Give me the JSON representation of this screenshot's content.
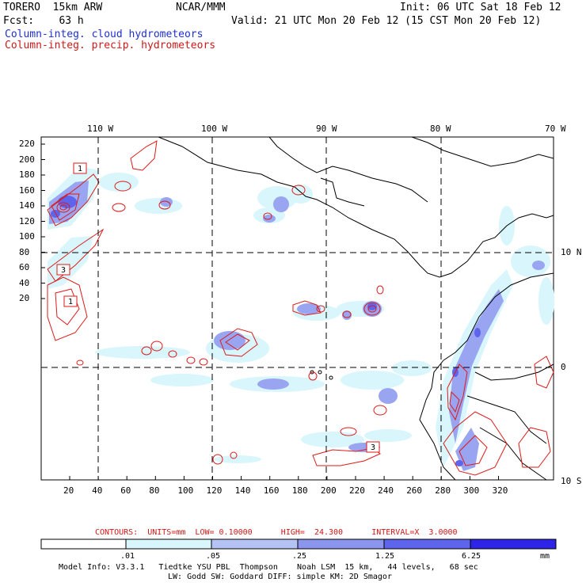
{
  "header": {
    "model": "TORERO  15km ARW",
    "org": "NCAR/MMM",
    "init": "Init: 06 UTC Sat 18 Feb 12",
    "fcst": "Fcst:    63 h",
    "valid": "Valid: 21 UTC Mon 20 Feb 12 (15 CST Mon 20 Feb 12)",
    "field_blue": "Column-integ. cloud hydrometeors",
    "field_red": "Column-integ. precip. hydrometeors"
  },
  "axes": {
    "lon_labels": [
      "110 W",
      "100 W",
      "90 W",
      "80 W",
      "70 W"
    ],
    "lat_labels": [
      "10 N",
      "0",
      "10 S"
    ],
    "y_ticks": [
      "220",
      "200",
      "180",
      "160",
      "140",
      "120",
      "100",
      "80",
      "60",
      "40",
      "20"
    ],
    "x_ticks": [
      "20",
      "40",
      "60",
      "80",
      "100",
      "120",
      "140",
      "160",
      "180",
      "200",
      "220",
      "240",
      "260",
      "280",
      "300",
      "320"
    ]
  },
  "contour_boxes": [
    "1",
    "3",
    "1",
    "3"
  ],
  "contour_info": "CONTOURS:  UNITS=mm  LOW= 0.10000      HIGH=  24.300      INTERVAL=X  3.0000",
  "colorbar": {
    "labels": [
      ".01",
      ".05",
      ".25",
      "1.25",
      "6.25"
    ],
    "units": "mm",
    "colors": [
      "#ffffff",
      "#d8f6fb",
      "#b5c2f4",
      "#8b95ee",
      "#5f64ec",
      "#2d24e8"
    ]
  },
  "footer": {
    "line1": "Model Info: V3.3.1   Tiedtke YSU PBL  Thompson    Noah LSM  15 km,   44 levels,   68 sec",
    "line2": "LW: Godd SW: Goddard DIFF: simple KM: 2D Smagor"
  }
}
